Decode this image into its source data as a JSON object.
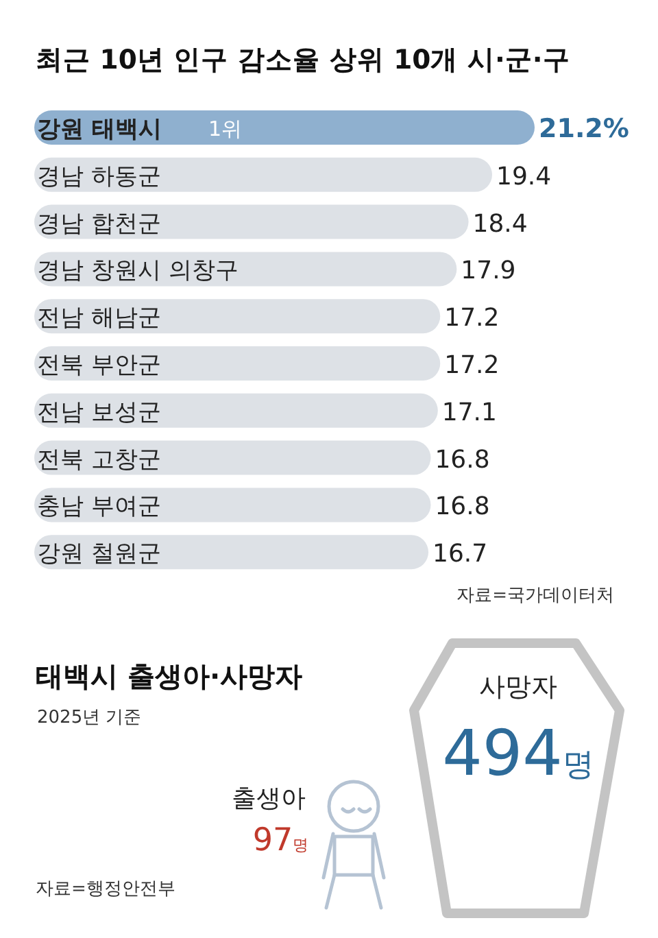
{
  "chart_data": [
    {
      "type": "bar",
      "orientation": "horizontal",
      "title": "최근 10년 인구 감소율 상위 10개 시·군·구",
      "categories": [
        "강원 태백시",
        "경남 하동군",
        "경남 합천군",
        "경남 창원시 의창구",
        "전남 해남군",
        "전북 부안군",
        "전남 보성군",
        "전북 고창군",
        "충남 부여군",
        "강원 철원군"
      ],
      "values": [
        21.2,
        19.4,
        18.4,
        17.9,
        17.2,
        17.2,
        17.1,
        16.8,
        16.8,
        16.7
      ],
      "value_labels": [
        "21.2%",
        "19.4",
        "18.4",
        "17.9",
        "17.2",
        "17.2",
        "17.1",
        "16.8",
        "16.8",
        "16.7"
      ],
      "colors": [
        "#8fb0cf",
        "#dde1e6",
        "#dde1e6",
        "#dde1e6",
        "#dde1e6",
        "#dde1e6",
        "#dde1e6",
        "#dde1e6",
        "#dde1e6",
        "#dde1e6"
      ],
      "tick_labels": false,
      "annotations": [
        "1위",
        "자료=국가데이터처"
      ]
    },
    {
      "type": "other",
      "title": "태백시 출생아·사망자",
      "subtitle": "2025년 기준",
      "categories": [
        "출생아",
        "사망자"
      ],
      "values": [
        97,
        494
      ],
      "value_labels": [
        "97명",
        "494명"
      ],
      "colors": [
        "#c0392b",
        "#2e6b99"
      ],
      "annotations": [
        "자료=행정안전부"
      ]
    }
  ]
}
